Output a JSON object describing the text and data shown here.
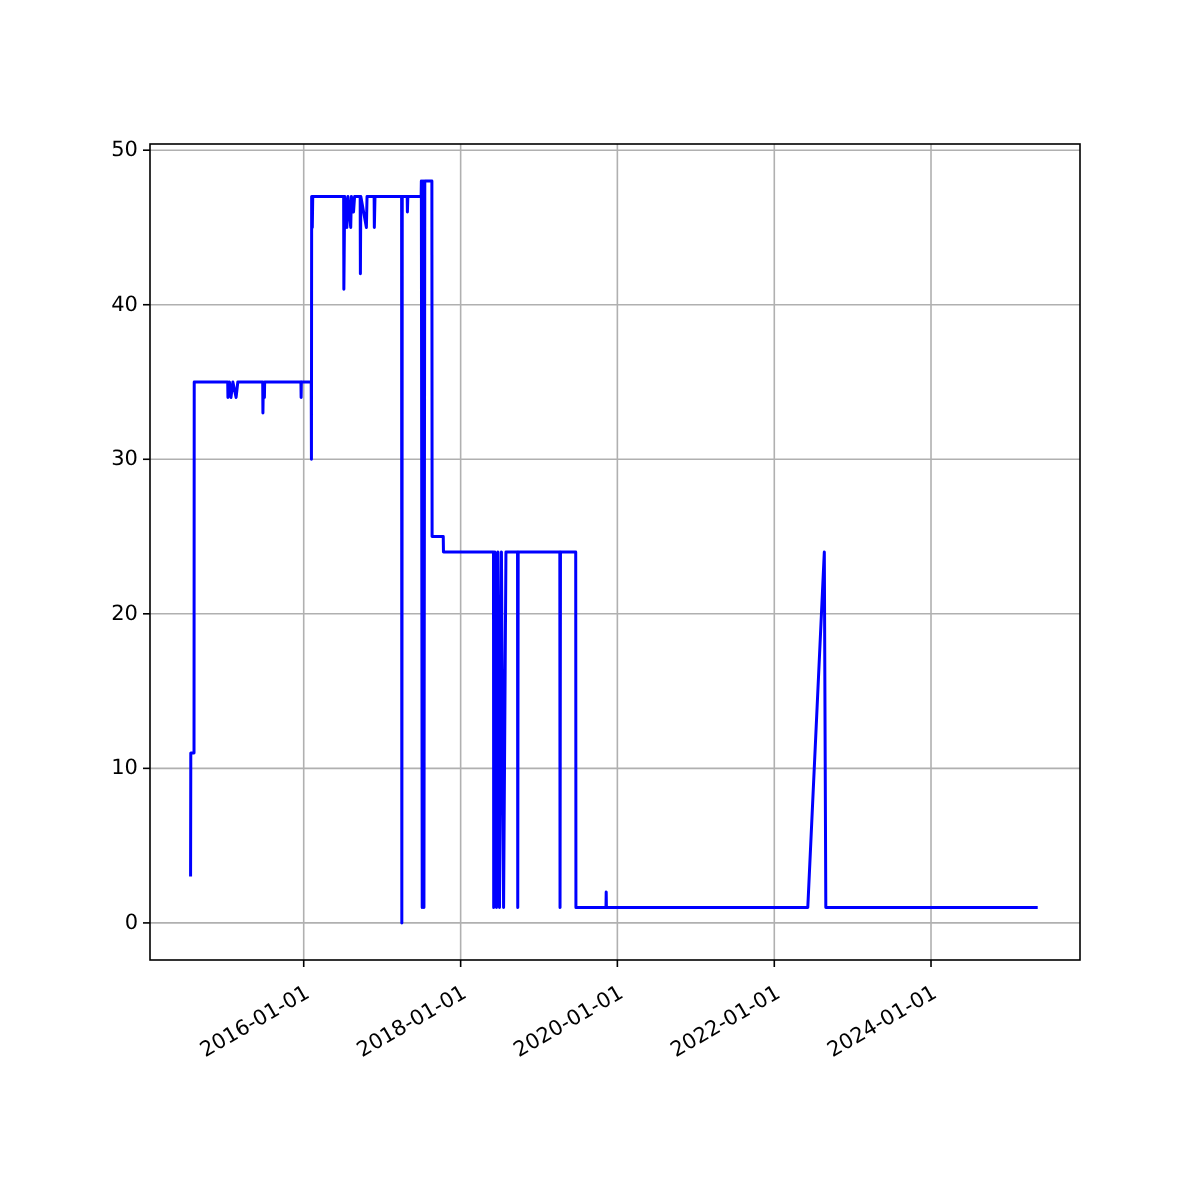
{
  "chart_data": {
    "type": "line",
    "x": [
      "2014-07-23",
      "2014-07-24",
      "2014-08-08",
      "2014-08-09",
      "2015-01-12",
      "2015-01-13",
      "2015-01-20",
      "2015-01-27",
      "2015-02-05",
      "2015-02-20",
      "2015-02-28",
      "2015-06-24",
      "2015-06-25",
      "2015-06-26",
      "2015-07-02",
      "2015-07-03",
      "2015-12-19",
      "2015-12-20",
      "2015-12-21",
      "2016-02-05",
      "2016-02-06",
      "2016-02-07",
      "2016-02-10",
      "2016-02-12",
      "2016-07-05",
      "2016-07-06",
      "2016-07-10",
      "2016-07-20",
      "2016-07-25",
      "2016-08-07",
      "2016-08-10",
      "2016-08-20",
      "2016-08-25",
      "2016-09-20",
      "2016-09-21",
      "2016-09-23",
      "2016-10-19",
      "2016-10-22",
      "2016-11-24",
      "2016-11-25",
      "2016-11-28",
      "2017-04-01",
      "2017-04-02",
      "2017-04-04",
      "2017-04-27",
      "2017-04-28",
      "2017-04-30",
      "2017-07-01",
      "2017-07-02",
      "2017-07-06",
      "2017-07-10",
      "2017-07-14",
      "2017-07-18",
      "2017-08-20",
      "2017-08-21",
      "2017-10-12",
      "2017-10-13",
      "2018-06-03",
      "2018-06-04",
      "2018-06-10",
      "2018-06-17",
      "2018-06-24",
      "2018-07-01",
      "2018-07-10",
      "2018-07-20",
      "2018-07-31",
      "2018-09-23",
      "2018-09-24",
      "2018-09-26",
      "2019-04-08",
      "2019-04-09",
      "2019-04-11",
      "2019-06-21",
      "2019-06-22",
      "2019-11-09",
      "2019-11-10",
      "2019-11-11",
      "2022-06-06",
      "2022-08-22",
      "2022-08-29",
      "2025-05-12"
    ],
    "series": [
      {
        "color": "#0000ff",
        "values": [
          3,
          11,
          11,
          35,
          35,
          34,
          35,
          34,
          35,
          34,
          35,
          35,
          33,
          34,
          34,
          35,
          35,
          34,
          35,
          35,
          30,
          47,
          45,
          47,
          47,
          41,
          47,
          45,
          47,
          45,
          47,
          46,
          47,
          47,
          42,
          47,
          45,
          47,
          47,
          45,
          47,
          47,
          0,
          47,
          47,
          46,
          47,
          47,
          48,
          1,
          48,
          1,
          48,
          48,
          25,
          25,
          24,
          24,
          1,
          24,
          1,
          24,
          1,
          24,
          1,
          24,
          24,
          1,
          24,
          24,
          1,
          24,
          24,
          1,
          1,
          2,
          1,
          1,
          24,
          1,
          1
        ]
      }
    ],
    "xlim": [
      "2014-01-15",
      "2025-11-25"
    ],
    "xticks": [
      {
        "value": "2016-01-01",
        "label": "2016-01-01"
      },
      {
        "value": "2018-01-01",
        "label": "2018-01-01"
      },
      {
        "value": "2020-01-01",
        "label": "2020-01-01"
      },
      {
        "value": "2022-01-01",
        "label": "2022-01-01"
      },
      {
        "value": "2024-01-01",
        "label": "2024-01-01"
      }
    ],
    "ylim": [
      -2.4,
      50.4
    ],
    "yticks": [
      0,
      10,
      20,
      30,
      40,
      50
    ],
    "grid": true
  }
}
